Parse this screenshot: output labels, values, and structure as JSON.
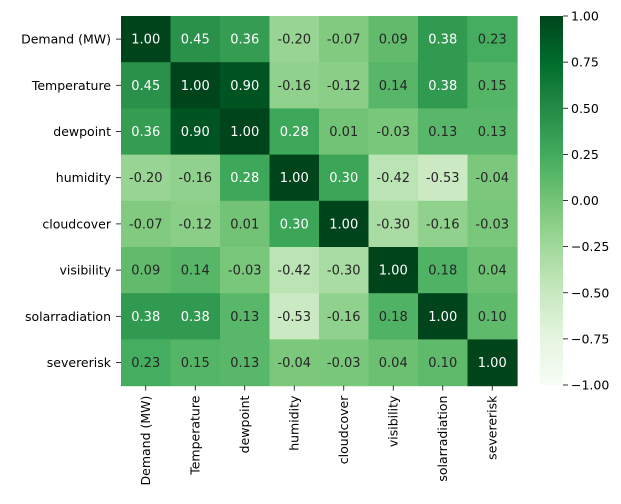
{
  "chart_data": {
    "type": "heatmap",
    "title": "",
    "xlabel": "",
    "ylabel": "",
    "rows": [
      "Demand (MW)",
      "Temperature",
      "dewpoint",
      "humidity",
      "cloudcover",
      "visibility",
      "solarradiation",
      "severerisk"
    ],
    "columns": [
      "Demand (MW)",
      "Temperature",
      "dewpoint",
      "humidity",
      "cloudcover",
      "visibility",
      "solarradiation",
      "severerisk"
    ],
    "values": [
      [
        1.0,
        0.45,
        0.36,
        -0.2,
        -0.07,
        0.09,
        0.38,
        0.23
      ],
      [
        0.45,
        1.0,
        0.9,
        -0.16,
        -0.12,
        0.14,
        0.38,
        0.15
      ],
      [
        0.36,
        0.9,
        1.0,
        0.28,
        0.01,
        -0.03,
        0.13,
        0.13
      ],
      [
        -0.2,
        -0.16,
        0.28,
        1.0,
        0.3,
        -0.42,
        -0.53,
        -0.04
      ],
      [
        -0.07,
        -0.12,
        0.01,
        0.3,
        1.0,
        -0.3,
        -0.16,
        -0.03
      ],
      [
        0.09,
        0.14,
        -0.03,
        -0.42,
        -0.3,
        1.0,
        0.18,
        0.04
      ],
      [
        0.38,
        0.38,
        0.13,
        -0.53,
        -0.16,
        0.18,
        1.0,
        0.1
      ],
      [
        0.23,
        0.15,
        0.13,
        -0.04,
        -0.03,
        0.04,
        0.1,
        1.0
      ]
    ],
    "value_format": "2 decimals",
    "colormap": "Greens",
    "colormap_stops": [
      "#f7fcf5",
      "#e5f5e0",
      "#c7e9c0",
      "#a1d99b",
      "#74c476",
      "#41ab5d",
      "#238b45",
      "#006d2c",
      "#00441b"
    ],
    "vmin": -1.0,
    "vmax": 1.0,
    "colorbar": {
      "ticks": [
        -1.0,
        -0.75,
        -0.5,
        -0.25,
        0.0,
        0.25,
        0.5,
        0.75,
        1.0
      ],
      "tick_labels": [
        "−1.00",
        "−0.75",
        "−0.50",
        "−0.25",
        "0.00",
        "0.25",
        "0.50",
        "0.75",
        "1.00"
      ],
      "position": "right"
    }
  }
}
